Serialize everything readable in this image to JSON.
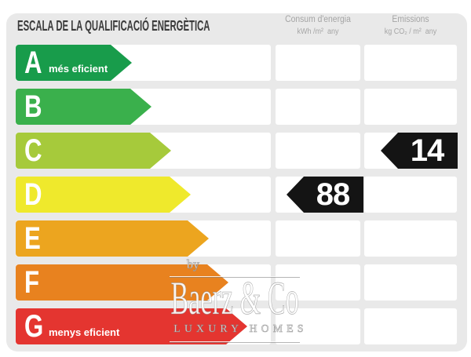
{
  "header": {
    "title": "ESCALA DE LA QUALIFICACIÓ ENERGÈTICA",
    "consum_col": {
      "title": "Consum d'energia",
      "unit": "kWh /m²  any"
    },
    "emissions_col": {
      "title": "Emissions",
      "unit": "kg CO₂ / m²  any"
    }
  },
  "scale": {
    "rows": [
      {
        "letter": "A",
        "note": "més eficient",
        "color": "#189c4b",
        "arrow_width": 148
      },
      {
        "letter": "B",
        "note": "",
        "color": "#3ab04c",
        "arrow_width": 173
      },
      {
        "letter": "C",
        "note": "",
        "color": "#a6ca3b",
        "arrow_width": 198,
        "emissions_value": "14"
      },
      {
        "letter": "D",
        "note": "",
        "color": "#efe92c",
        "arrow_width": 223,
        "consum_value": "88"
      },
      {
        "letter": "E",
        "note": "",
        "color": "#eca51f",
        "arrow_width": 246
      },
      {
        "letter": "F",
        "note": "",
        "color": "#e8821f",
        "arrow_width": 271
      },
      {
        "letter": "G",
        "note": "menys eficient",
        "color": "#e43530",
        "arrow_width": 295
      }
    ],
    "value_arrow_color": "#141414"
  },
  "watermark": {
    "by": "by",
    "name": "Baerz & Co",
    "subtitle": "LUXURY HOMES"
  },
  "colors": {
    "card_bg": "#e9e9e9",
    "cell_bg": "#ffffff",
    "title_text": "#3a3a3a",
    "muted_text": "#a5a5a5"
  },
  "chart_data": {
    "type": "bar",
    "title": "ESCALA DE LA QUALIFICACIÓ ENERGÈTICA",
    "categories": [
      "A",
      "B",
      "C",
      "D",
      "E",
      "F",
      "G"
    ],
    "values": [
      148,
      173,
      198,
      223,
      246,
      271,
      295
    ],
    "values_note": "ordinal arrow lengths in px; scale is categorical A (més eficient) to G (menys eficient)",
    "series": [
      {
        "name": "Consum d'energia (kWh/m² any)",
        "class": "D",
        "value": 88
      },
      {
        "name": "Emissions (kg CO₂/m² any)",
        "class": "C",
        "value": 14
      }
    ],
    "annotations": [
      "A = més eficient",
      "G = menys eficient"
    ],
    "legend_position": "none",
    "grid": false
  }
}
